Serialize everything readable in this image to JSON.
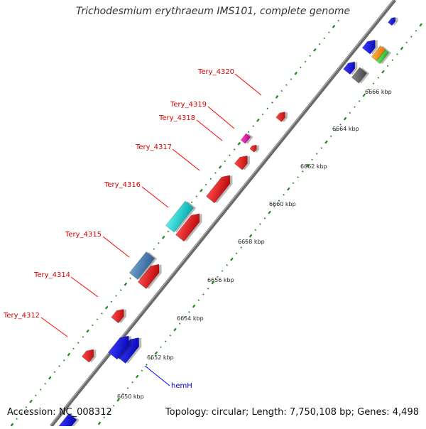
{
  "title": "Trichodesmium erythraeum IMS101, complete genome",
  "accession": "Accession: NC_008312",
  "topology": "Topology: circular; Length: 7,750,108 bp; Genes: 4,498",
  "kbp_labels": [
    "6650 kbp",
    "6652 kbp",
    "6654 kbp",
    "6656 kbp",
    "6658 kbp",
    "6660 kbp",
    "6662 kbp",
    "6664 kbp",
    "6666 kbp"
  ],
  "gene_labels": [
    "Tery_4312",
    "Tery_4314",
    "Tery_4315",
    "Tery_4316",
    "Tery_4317",
    "Tery_4318",
    "Tery_4319",
    "Tery_4320"
  ],
  "named_gene": "hemH",
  "colors": {
    "backbone": "#8a8a8a",
    "dots": "#1a8a1a",
    "red_gene": "#e00000",
    "blue_gene": "#0000dd",
    "cyan_gene": "#00cccc",
    "steel_gene": "#4682b4",
    "magenta_gene": "#ee00aa",
    "orange_gene": "#ff9900",
    "green_gene": "#33cc33",
    "gray_gene": "#555555",
    "label_red": "#d40000",
    "label_blue": "#0000cc"
  }
}
